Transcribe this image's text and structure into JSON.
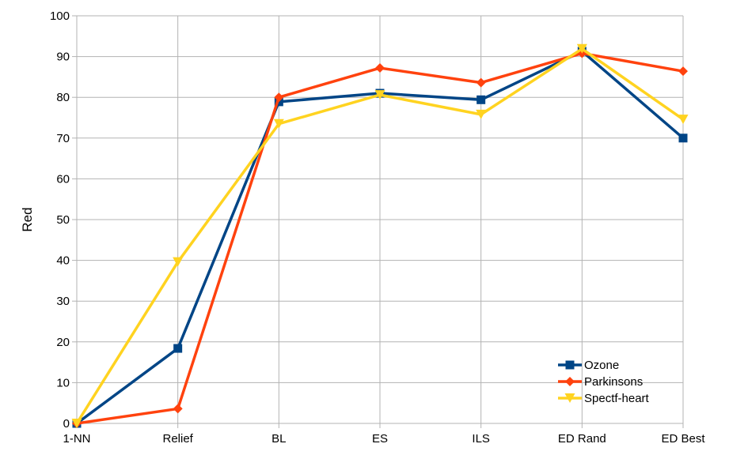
{
  "chart_data": {
    "type": "line",
    "title": "",
    "xlabel": "",
    "ylabel": "Red",
    "ylim": [
      0,
      100
    ],
    "yticks": [
      0,
      10,
      20,
      30,
      40,
      50,
      60,
      70,
      80,
      90,
      100
    ],
    "grid": true,
    "legend_position": "bottom-right",
    "categories": [
      "1-NN",
      "Relief",
      "BL",
      "ES",
      "ILS",
      "ED Rand",
      "ED Best"
    ],
    "series": [
      {
        "name": "Ozone",
        "color": "#004586",
        "marker": "square",
        "values": [
          0,
          18.4,
          78.9,
          81.0,
          79.4,
          91.3,
          70.0
        ]
      },
      {
        "name": "Parkinsons",
        "color": "#ff420e",
        "marker": "diamond",
        "values": [
          0,
          3.6,
          80.0,
          87.2,
          83.6,
          90.8,
          86.4
        ]
      },
      {
        "name": "Spectf-heart",
        "color": "#ffd320",
        "marker": "triangle-down",
        "values": [
          0,
          39.6,
          73.5,
          80.6,
          75.8,
          91.9,
          74.6
        ]
      }
    ]
  }
}
